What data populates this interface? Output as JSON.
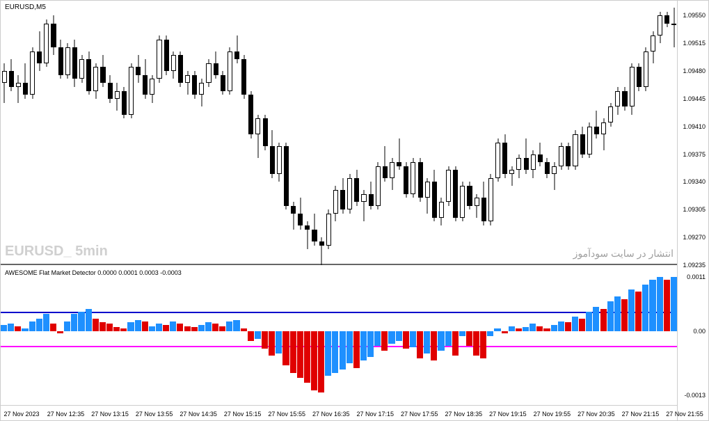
{
  "chart_title": "EURUSD,M5",
  "watermark": "EURUSD_ 5min",
  "persian_watermark": "انتشار در سایت سودآموز",
  "indicator_title": "AWESOME Flat Market Detector  0.0000 0.0001 0.0003 -0.0003",
  "colors": {
    "background": "#ffffff",
    "candle_border": "#000000",
    "candle_fill": "#000000",
    "histo_blue": "#1e90ff",
    "histo_red": "#e00000",
    "blue_line": "#0000cc",
    "magenta_line": "#ff00ff",
    "watermark_gray": "#d0d0d0",
    "border_gray": "#666666"
  },
  "upper_axis": {
    "ymin": 1.09235,
    "ymax": 1.0956,
    "ticks": [
      1.09235,
      1.0927,
      1.09305,
      1.0934,
      1.09375,
      1.0941,
      1.09445,
      1.0948,
      1.09515,
      1.0955
    ]
  },
  "lower_axis": {
    "ymin": -0.0013,
    "ymax": 0.0011,
    "ticks": [
      -0.0013,
      0.0,
      0.0011
    ],
    "blue_line": 0.0004,
    "magenta_line": -0.0003
  },
  "x_labels": [
    "27 Nov 2023",
    "27 Nov 12:35",
    "27 Nov 13:15",
    "27 Nov 13:55",
    "27 Nov 14:35",
    "27 Nov 15:15",
    "27 Nov 15:55",
    "27 Nov 16:35",
    "27 Nov 17:15",
    "27 Nov 17:55",
    "27 Nov 18:35",
    "27 Nov 19:15",
    "27 Nov 19:55",
    "27 Nov 20:35",
    "27 Nov 21:15",
    "27 Nov 21:55"
  ],
  "candles": [
    {
      "o": 1.09465,
      "h": 1.0949,
      "l": 1.0944,
      "c": 1.0948
    },
    {
      "o": 1.0948,
      "h": 1.09495,
      "l": 1.09455,
      "c": 1.0946
    },
    {
      "o": 1.0946,
      "h": 1.09475,
      "l": 1.0944,
      "c": 1.09465
    },
    {
      "o": 1.09465,
      "h": 1.0949,
      "l": 1.09445,
      "c": 1.0945
    },
    {
      "o": 1.0945,
      "h": 1.0951,
      "l": 1.09445,
      "c": 1.09505
    },
    {
      "o": 1.09505,
      "h": 1.0953,
      "l": 1.0948,
      "c": 1.0949
    },
    {
      "o": 1.0949,
      "h": 1.09545,
      "l": 1.09485,
      "c": 1.0954
    },
    {
      "o": 1.0954,
      "h": 1.0955,
      "l": 1.095,
      "c": 1.0951
    },
    {
      "o": 1.0951,
      "h": 1.0952,
      "l": 1.0947,
      "c": 1.09475
    },
    {
      "o": 1.09475,
      "h": 1.09515,
      "l": 1.0947,
      "c": 1.0951
    },
    {
      "o": 1.0951,
      "h": 1.0952,
      "l": 1.0946,
      "c": 1.0947
    },
    {
      "o": 1.0947,
      "h": 1.095,
      "l": 1.09465,
      "c": 1.09495
    },
    {
      "o": 1.09495,
      "h": 1.09505,
      "l": 1.0945,
      "c": 1.09455
    },
    {
      "o": 1.09455,
      "h": 1.0949,
      "l": 1.09445,
      "c": 1.09485
    },
    {
      "o": 1.09485,
      "h": 1.095,
      "l": 1.0946,
      "c": 1.09465
    },
    {
      "o": 1.09465,
      "h": 1.09475,
      "l": 1.0944,
      "c": 1.09445
    },
    {
      "o": 1.09445,
      "h": 1.09465,
      "l": 1.0943,
      "c": 1.09455
    },
    {
      "o": 1.09455,
      "h": 1.0946,
      "l": 1.0942,
      "c": 1.09425
    },
    {
      "o": 1.09425,
      "h": 1.0949,
      "l": 1.0942,
      "c": 1.09485
    },
    {
      "o": 1.09485,
      "h": 1.095,
      "l": 1.09465,
      "c": 1.09475
    },
    {
      "o": 1.09475,
      "h": 1.09495,
      "l": 1.09445,
      "c": 1.0945
    },
    {
      "o": 1.0945,
      "h": 1.09475,
      "l": 1.0944,
      "c": 1.0947
    },
    {
      "o": 1.0947,
      "h": 1.09525,
      "l": 1.09465,
      "c": 1.0952
    },
    {
      "o": 1.0952,
      "h": 1.09525,
      "l": 1.09475,
      "c": 1.0948
    },
    {
      "o": 1.0948,
      "h": 1.09505,
      "l": 1.0947,
      "c": 1.095
    },
    {
      "o": 1.095,
      "h": 1.09505,
      "l": 1.0946,
      "c": 1.09465
    },
    {
      "o": 1.09465,
      "h": 1.0948,
      "l": 1.0945,
      "c": 1.09475
    },
    {
      "o": 1.09475,
      "h": 1.0948,
      "l": 1.09445,
      "c": 1.0945
    },
    {
      "o": 1.0945,
      "h": 1.0947,
      "l": 1.09435,
      "c": 1.09465
    },
    {
      "o": 1.09465,
      "h": 1.09495,
      "l": 1.0946,
      "c": 1.0949
    },
    {
      "o": 1.0949,
      "h": 1.09505,
      "l": 1.0947,
      "c": 1.09475
    },
    {
      "o": 1.09475,
      "h": 1.0948,
      "l": 1.0945,
      "c": 1.09455
    },
    {
      "o": 1.09455,
      "h": 1.0951,
      "l": 1.0945,
      "c": 1.09505
    },
    {
      "o": 1.09505,
      "h": 1.09525,
      "l": 1.0949,
      "c": 1.09495
    },
    {
      "o": 1.09495,
      "h": 1.095,
      "l": 1.09445,
      "c": 1.0945
    },
    {
      "o": 1.0945,
      "h": 1.09455,
      "l": 1.09395,
      "c": 1.094
    },
    {
      "o": 1.094,
      "h": 1.09425,
      "l": 1.0937,
      "c": 1.0942
    },
    {
      "o": 1.0942,
      "h": 1.09425,
      "l": 1.0938,
      "c": 1.09385
    },
    {
      "o": 1.09385,
      "h": 1.09405,
      "l": 1.09345,
      "c": 1.0935
    },
    {
      "o": 1.0935,
      "h": 1.0939,
      "l": 1.0934,
      "c": 1.09385
    },
    {
      "o": 1.09385,
      "h": 1.0939,
      "l": 1.09305,
      "c": 1.0931
    },
    {
      "o": 1.0931,
      "h": 1.09315,
      "l": 1.0928,
      "c": 1.093
    },
    {
      "o": 1.093,
      "h": 1.0932,
      "l": 1.0928,
      "c": 1.09285
    },
    {
      "o": 1.09285,
      "h": 1.0929,
      "l": 1.09255,
      "c": 1.0928
    },
    {
      "o": 1.0928,
      "h": 1.093,
      "l": 1.0926,
      "c": 1.09265
    },
    {
      "o": 1.09265,
      "h": 1.0927,
      "l": 1.09235,
      "c": 1.0926
    },
    {
      "o": 1.0926,
      "h": 1.09305,
      "l": 1.09255,
      "c": 1.093
    },
    {
      "o": 1.093,
      "h": 1.09335,
      "l": 1.0929,
      "c": 1.0933
    },
    {
      "o": 1.0933,
      "h": 1.09345,
      "l": 1.093,
      "c": 1.09305
    },
    {
      "o": 1.09305,
      "h": 1.0935,
      "l": 1.093,
      "c": 1.09345
    },
    {
      "o": 1.09345,
      "h": 1.09355,
      "l": 1.0931,
      "c": 1.09315
    },
    {
      "o": 1.09315,
      "h": 1.0933,
      "l": 1.0929,
      "c": 1.09325
    },
    {
      "o": 1.09325,
      "h": 1.0934,
      "l": 1.09305,
      "c": 1.0931
    },
    {
      "o": 1.0931,
      "h": 1.09365,
      "l": 1.09305,
      "c": 1.0936
    },
    {
      "o": 1.0936,
      "h": 1.09385,
      "l": 1.0934,
      "c": 1.09345
    },
    {
      "o": 1.09345,
      "h": 1.0937,
      "l": 1.0933,
      "c": 1.09365
    },
    {
      "o": 1.09365,
      "h": 1.09395,
      "l": 1.09355,
      "c": 1.0936
    },
    {
      "o": 1.0936,
      "h": 1.09365,
      "l": 1.0932,
      "c": 1.09325
    },
    {
      "o": 1.09325,
      "h": 1.0937,
      "l": 1.0932,
      "c": 1.09365
    },
    {
      "o": 1.09365,
      "h": 1.0937,
      "l": 1.09315,
      "c": 1.0932
    },
    {
      "o": 1.0932,
      "h": 1.09345,
      "l": 1.093,
      "c": 1.0934
    },
    {
      "o": 1.0934,
      "h": 1.09355,
      "l": 1.0929,
      "c": 1.09295
    },
    {
      "o": 1.09295,
      "h": 1.0932,
      "l": 1.09285,
      "c": 1.09315
    },
    {
      "o": 1.09315,
      "h": 1.0936,
      "l": 1.0931,
      "c": 1.09355
    },
    {
      "o": 1.09355,
      "h": 1.0936,
      "l": 1.0929,
      "c": 1.09295
    },
    {
      "o": 1.09295,
      "h": 1.0934,
      "l": 1.0929,
      "c": 1.09335
    },
    {
      "o": 1.09335,
      "h": 1.0934,
      "l": 1.09305,
      "c": 1.0931
    },
    {
      "o": 1.0931,
      "h": 1.09325,
      "l": 1.09295,
      "c": 1.0932
    },
    {
      "o": 1.0932,
      "h": 1.0934,
      "l": 1.09285,
      "c": 1.0929
    },
    {
      "o": 1.0929,
      "h": 1.0935,
      "l": 1.09285,
      "c": 1.09345
    },
    {
      "o": 1.09345,
      "h": 1.09395,
      "l": 1.0934,
      "c": 1.0939
    },
    {
      "o": 1.0939,
      "h": 1.094,
      "l": 1.09345,
      "c": 1.0935
    },
    {
      "o": 1.0935,
      "h": 1.0936,
      "l": 1.09335,
      "c": 1.09355
    },
    {
      "o": 1.09355,
      "h": 1.09375,
      "l": 1.09345,
      "c": 1.0937
    },
    {
      "o": 1.0937,
      "h": 1.09395,
      "l": 1.0935,
      "c": 1.09355
    },
    {
      "o": 1.09355,
      "h": 1.0938,
      "l": 1.09345,
      "c": 1.09375
    },
    {
      "o": 1.09375,
      "h": 1.0939,
      "l": 1.0936,
      "c": 1.09365
    },
    {
      "o": 1.09365,
      "h": 1.0937,
      "l": 1.09345,
      "c": 1.0935
    },
    {
      "o": 1.0935,
      "h": 1.09365,
      "l": 1.0933,
      "c": 1.0936
    },
    {
      "o": 1.0936,
      "h": 1.0939,
      "l": 1.09355,
      "c": 1.09385
    },
    {
      "o": 1.09385,
      "h": 1.0939,
      "l": 1.09355,
      "c": 1.0936
    },
    {
      "o": 1.0936,
      "h": 1.09405,
      "l": 1.09355,
      "c": 1.094
    },
    {
      "o": 1.094,
      "h": 1.0941,
      "l": 1.0937,
      "c": 1.09375
    },
    {
      "o": 1.09375,
      "h": 1.09415,
      "l": 1.0937,
      "c": 1.0941
    },
    {
      "o": 1.0941,
      "h": 1.0943,
      "l": 1.09395,
      "c": 1.094
    },
    {
      "o": 1.094,
      "h": 1.0942,
      "l": 1.0938,
      "c": 1.09415
    },
    {
      "o": 1.09415,
      "h": 1.0944,
      "l": 1.0941,
      "c": 1.09435
    },
    {
      "o": 1.09435,
      "h": 1.0946,
      "l": 1.09425,
      "c": 1.09455
    },
    {
      "o": 1.09455,
      "h": 1.0946,
      "l": 1.0943,
      "c": 1.09435
    },
    {
      "o": 1.09435,
      "h": 1.0949,
      "l": 1.09425,
      "c": 1.09485
    },
    {
      "o": 1.09485,
      "h": 1.0949,
      "l": 1.09455,
      "c": 1.0946
    },
    {
      "o": 1.0946,
      "h": 1.0951,
      "l": 1.09455,
      "c": 1.09505
    },
    {
      "o": 1.09505,
      "h": 1.0953,
      "l": 1.0949,
      "c": 1.09525
    },
    {
      "o": 1.09525,
      "h": 1.09555,
      "l": 1.09515,
      "c": 1.0955
    },
    {
      "o": 1.0955,
      "h": 1.09555,
      "l": 1.09535,
      "c": 1.0954
    },
    {
      "o": 1.0954,
      "h": 1.0956,
      "l": 1.0951,
      "c": 1.0954
    }
  ],
  "histogram": [
    {
      "v": 0.00012,
      "c": "b"
    },
    {
      "v": 0.00015,
      "c": "b"
    },
    {
      "v": 0.0001,
      "c": "r"
    },
    {
      "v": 5e-05,
      "c": "b"
    },
    {
      "v": 0.0002,
      "c": "b"
    },
    {
      "v": 0.00025,
      "c": "b"
    },
    {
      "v": 0.00035,
      "c": "b"
    },
    {
      "v": 0.00015,
      "c": "r"
    },
    {
      "v": -5e-05,
      "c": "r"
    },
    {
      "v": 0.0002,
      "c": "b"
    },
    {
      "v": 0.00035,
      "c": "b"
    },
    {
      "v": 0.0004,
      "c": "b"
    },
    {
      "v": 0.00045,
      "c": "b"
    },
    {
      "v": 0.00025,
      "c": "r"
    },
    {
      "v": 0.00018,
      "c": "r"
    },
    {
      "v": 0.00015,
      "c": "r"
    },
    {
      "v": 8e-05,
      "c": "r"
    },
    {
      "v": 5e-05,
      "c": "r"
    },
    {
      "v": 0.00018,
      "c": "b"
    },
    {
      "v": 0.00022,
      "c": "b"
    },
    {
      "v": 0.0002,
      "c": "r"
    },
    {
      "v": 0.0001,
      "c": "b"
    },
    {
      "v": 0.00015,
      "c": "b"
    },
    {
      "v": 0.00012,
      "c": "r"
    },
    {
      "v": 0.0002,
      "c": "b"
    },
    {
      "v": 0.00015,
      "c": "r"
    },
    {
      "v": 0.0001,
      "c": "r"
    },
    {
      "v": 8e-05,
      "c": "r"
    },
    {
      "v": 0.00012,
      "c": "b"
    },
    {
      "v": 0.00018,
      "c": "b"
    },
    {
      "v": 0.00015,
      "c": "r"
    },
    {
      "v": 0.0001,
      "c": "r"
    },
    {
      "v": 0.0002,
      "c": "b"
    },
    {
      "v": 0.00022,
      "c": "b"
    },
    {
      "v": 5e-05,
      "c": "r"
    },
    {
      "v": -0.0002,
      "c": "r"
    },
    {
      "v": -0.00015,
      "c": "b"
    },
    {
      "v": -0.00035,
      "c": "r"
    },
    {
      "v": -0.0005,
      "c": "r"
    },
    {
      "v": -0.00045,
      "c": "b"
    },
    {
      "v": -0.0007,
      "c": "r"
    },
    {
      "v": -0.00085,
      "c": "r"
    },
    {
      "v": -0.00095,
      "c": "r"
    },
    {
      "v": -0.00105,
      "c": "r"
    },
    {
      "v": -0.0012,
      "c": "r"
    },
    {
      "v": -0.00125,
      "c": "r"
    },
    {
      "v": -0.0009,
      "c": "b"
    },
    {
      "v": -0.00085,
      "c": "b"
    },
    {
      "v": -0.00078,
      "c": "b"
    },
    {
      "v": -0.00065,
      "c": "b"
    },
    {
      "v": -0.00075,
      "c": "r"
    },
    {
      "v": -0.0006,
      "c": "b"
    },
    {
      "v": -0.00052,
      "c": "b"
    },
    {
      "v": -0.0003,
      "c": "b"
    },
    {
      "v": -0.0004,
      "c": "r"
    },
    {
      "v": -0.00025,
      "c": "b"
    },
    {
      "v": -0.0002,
      "c": "b"
    },
    {
      "v": -0.00035,
      "c": "r"
    },
    {
      "v": -0.00032,
      "c": "b"
    },
    {
      "v": -0.00055,
      "c": "r"
    },
    {
      "v": -0.00045,
      "c": "b"
    },
    {
      "v": -0.0006,
      "c": "r"
    },
    {
      "v": -0.0004,
      "c": "b"
    },
    {
      "v": -0.0003,
      "c": "b"
    },
    {
      "v": -0.0005,
      "c": "r"
    },
    {
      "v": -0.0001,
      "c": "b"
    },
    {
      "v": -0.0003,
      "c": "r"
    },
    {
      "v": -0.0005,
      "c": "r"
    },
    {
      "v": -0.00055,
      "c": "r"
    },
    {
      "v": -0.0001,
      "c": "b"
    },
    {
      "v": 5e-05,
      "c": "b"
    },
    {
      "v": -5e-05,
      "c": "r"
    },
    {
      "v": 0.0001,
      "c": "b"
    },
    {
      "v": 5e-05,
      "c": "r"
    },
    {
      "v": 8e-05,
      "c": "b"
    },
    {
      "v": 0.00015,
      "c": "b"
    },
    {
      "v": 0.0001,
      "c": "r"
    },
    {
      "v": 5e-05,
      "c": "r"
    },
    {
      "v": 0.00012,
      "c": "b"
    },
    {
      "v": 0.0002,
      "c": "b"
    },
    {
      "v": 0.00018,
      "c": "r"
    },
    {
      "v": 0.0003,
      "c": "b"
    },
    {
      "v": 0.00025,
      "c": "r"
    },
    {
      "v": 0.0004,
      "c": "b"
    },
    {
      "v": 0.0005,
      "c": "b"
    },
    {
      "v": 0.00045,
      "c": "r"
    },
    {
      "v": 0.0006,
      "c": "b"
    },
    {
      "v": 0.0007,
      "c": "b"
    },
    {
      "v": 0.00065,
      "c": "r"
    },
    {
      "v": 0.00085,
      "c": "b"
    },
    {
      "v": 0.0008,
      "c": "r"
    },
    {
      "v": 0.00095,
      "c": "b"
    },
    {
      "v": 0.00105,
      "c": "b"
    },
    {
      "v": 0.0011,
      "c": "b"
    },
    {
      "v": 0.00105,
      "c": "r"
    },
    {
      "v": 0.0011,
      "c": "b"
    }
  ]
}
